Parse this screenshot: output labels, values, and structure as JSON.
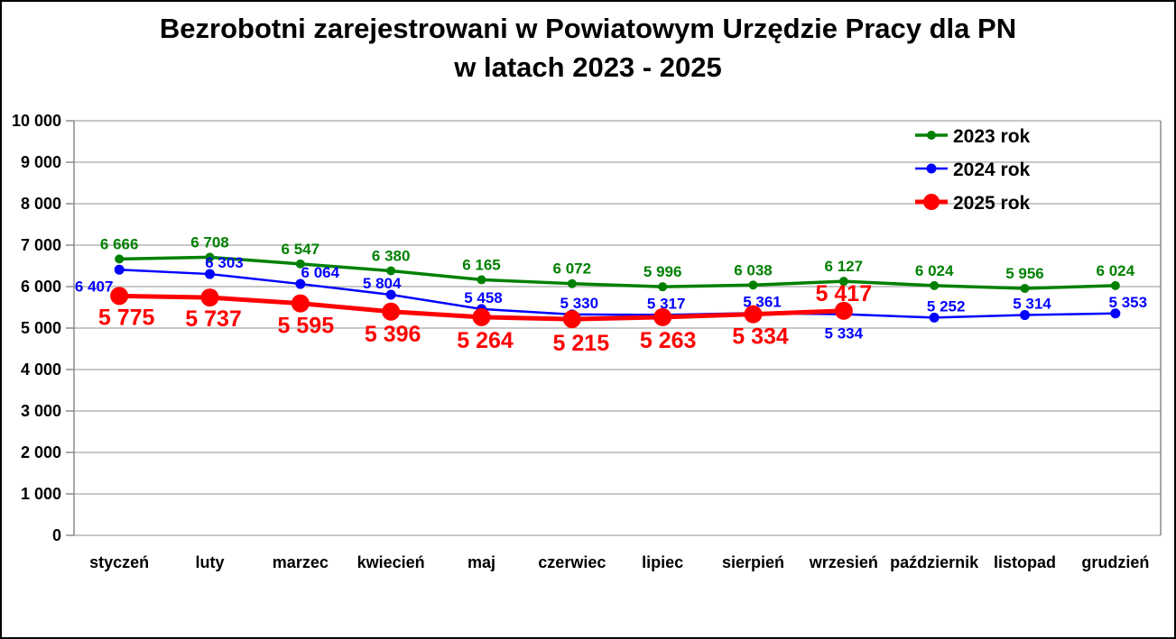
{
  "window": {
    "background": "#ffffff",
    "border_color": "#000000"
  },
  "title": {
    "line1": "Bezrobotni zarejestrowani w Powiatowym Urzędzie Pracy dla PN",
    "line2": "w latach 2023 - 2025"
  },
  "chart_data": {
    "type": "line",
    "title": "Bezrobotni zarejestrowani w Powiatowym Urzędzie Pracy dla PN w latach 2023 - 2025",
    "categories": [
      "styczeń",
      "luty",
      "marzec",
      "kwiecień",
      "maj",
      "czerwiec",
      "lipiec",
      "sierpień",
      "wrzesień",
      "październik",
      "listopad",
      "grudzień"
    ],
    "series": [
      {
        "name": "2023 rok",
        "color": "#008000",
        "values": [
          6666,
          6708,
          6547,
          6380,
          6165,
          6072,
          5996,
          6038,
          6127,
          6024,
          5956,
          6024
        ],
        "line_width": 3.5,
        "marker_radius": 5,
        "label_font_px": 17,
        "label_offsets": [
          [
            0,
            -11
          ],
          [
            0,
            -11
          ],
          [
            0,
            -11
          ],
          [
            0,
            -11
          ],
          [
            0,
            -11
          ],
          [
            0,
            -11
          ],
          [
            0,
            -11
          ],
          [
            0,
            -11
          ],
          [
            0,
            -11
          ],
          [
            0,
            -11
          ],
          [
            0,
            -11
          ],
          [
            0,
            -11
          ]
        ]
      },
      {
        "name": "2024 rok",
        "color": "#0000ff",
        "values": [
          6407,
          6303,
          6064,
          5804,
          5458,
          5330,
          5317,
          5361,
          5334,
          5252,
          5314,
          5353
        ],
        "line_width": 2.5,
        "marker_radius": 5.5,
        "label_font_px": 17,
        "label_offsets": [
          [
            -28,
            24
          ],
          [
            16,
            -7
          ],
          [
            22,
            -7
          ],
          [
            -10,
            -7
          ],
          [
            2,
            -7
          ],
          [
            8,
            -7
          ],
          [
            4,
            -7
          ],
          [
            10,
            -7
          ],
          [
            0,
            27
          ],
          [
            13,
            -7
          ],
          [
            8,
            -7
          ],
          [
            14,
            -7
          ]
        ]
      },
      {
        "name": "2025 rok",
        "color": "#ff0000",
        "values": [
          5775,
          5737,
          5595,
          5396,
          5264,
          5215,
          5263,
          5334,
          5417
        ],
        "line_width": 5,
        "marker_radius": 10,
        "label_font_px": 25,
        "label_offsets": [
          [
            8,
            32
          ],
          [
            4,
            32
          ],
          [
            6,
            33
          ],
          [
            2,
            33
          ],
          [
            4,
            34
          ],
          [
            10,
            35
          ],
          [
            6,
            34
          ],
          [
            8,
            33
          ],
          [
            0,
            -11
          ]
        ]
      }
    ],
    "xlabel": "",
    "ylabel": "",
    "ylim": [
      0,
      10000
    ],
    "ytick_step": 1000,
    "ytick_labels": [
      "0",
      "1 000",
      "2 000",
      "3 000",
      "4 000",
      "5 000",
      "6 000",
      "7 000",
      "8 000",
      "9 000",
      "10 000"
    ],
    "grid": true,
    "grid_color": "#a6a6a6",
    "axis_color": "#8c8c8c",
    "legend_position": "top-right",
    "legend_entries": [
      "2023 rok",
      "2024 rok",
      "2025 rok"
    ],
    "label_format": "space-thousands",
    "text_color": "#000000"
  }
}
